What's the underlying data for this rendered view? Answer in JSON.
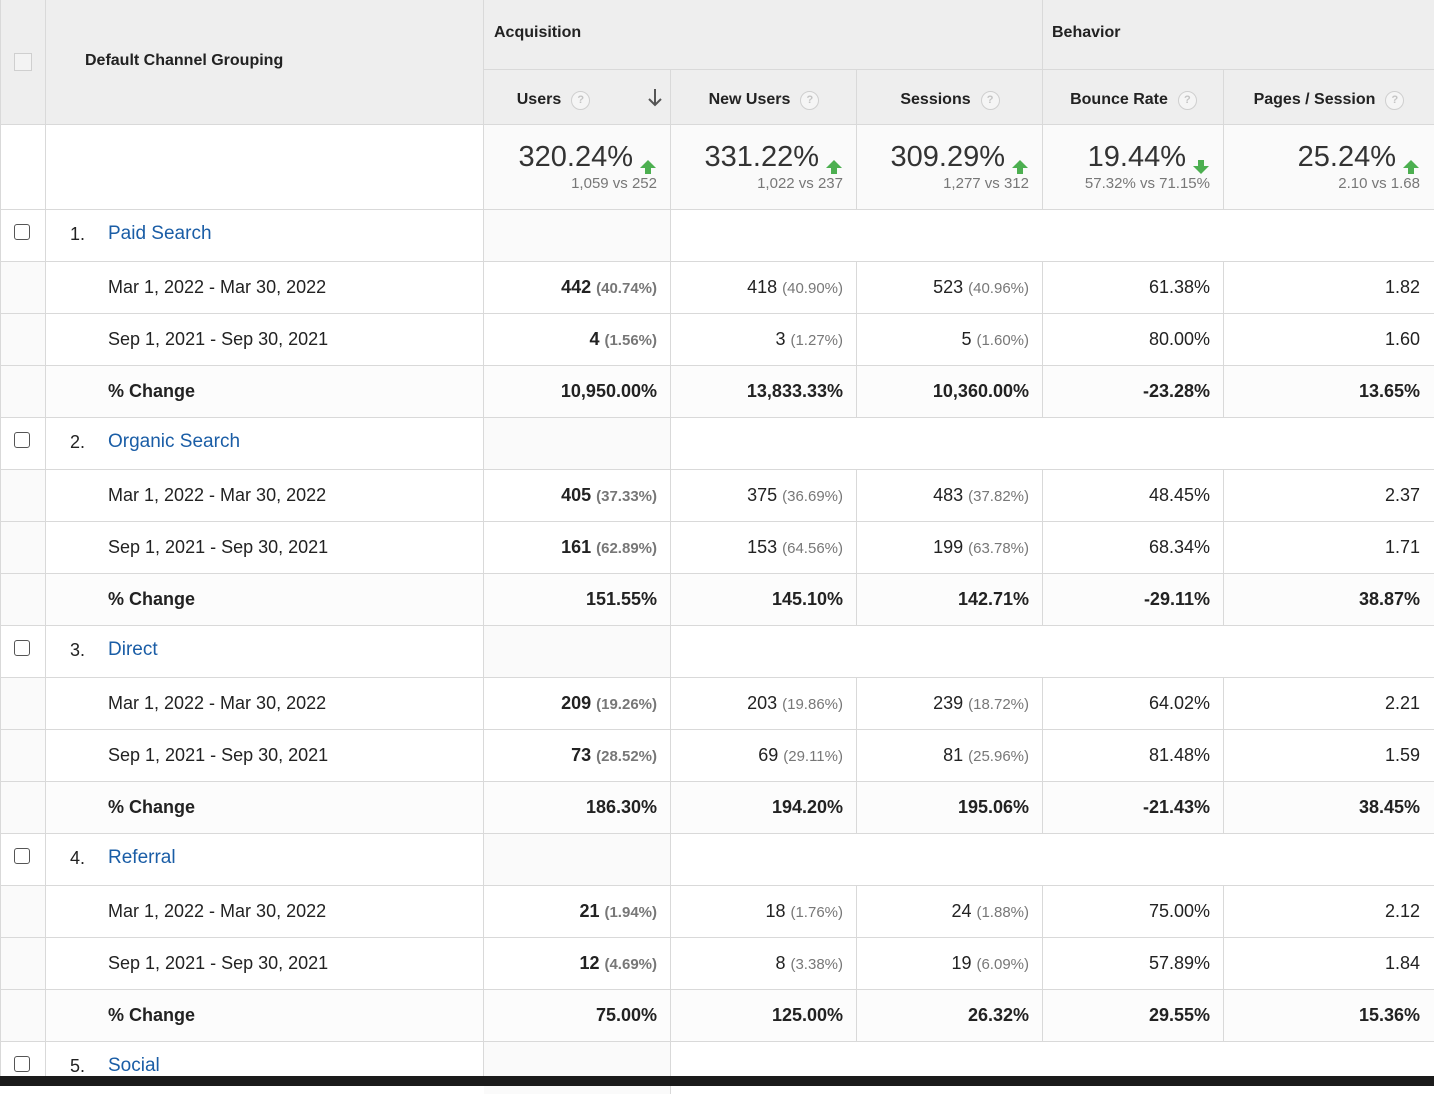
{
  "header": {
    "dimension_label": "Default Channel Grouping",
    "acquisition_label": "Acquisition",
    "behavior_label": "Behavior",
    "help_glyph": "?",
    "columns": [
      {
        "label": "Users",
        "sorted": true
      },
      {
        "label": "New Users"
      },
      {
        "label": "Sessions"
      },
      {
        "label": "Bounce Rate"
      },
      {
        "label": "Pages / Session"
      }
    ]
  },
  "summary": [
    {
      "change": "320.24%",
      "compare": "1,059 vs 252",
      "direction": "up"
    },
    {
      "change": "331.22%",
      "compare": "1,022 vs 237",
      "direction": "up"
    },
    {
      "change": "309.29%",
      "compare": "1,277 vs 312",
      "direction": "up"
    },
    {
      "change": "19.44%",
      "compare": "57.32% vs 71.15%",
      "direction": "down"
    },
    {
      "change": "25.24%",
      "compare": "2.10 vs 1.68",
      "direction": "up"
    }
  ],
  "colors": {
    "link": "#1a5da6",
    "arrow_green": "#4caf50",
    "header_bg": "#eeeeee"
  },
  "groups": [
    {
      "rank": "1.",
      "name": "Paid Search",
      "rows": [
        {
          "label": "Mar 1, 2022 - Mar 30, 2022",
          "bold": false,
          "cells": [
            {
              "v": "442",
              "p": "(40.74%)"
            },
            {
              "v": "418",
              "p": "(40.90%)"
            },
            {
              "v": "523",
              "p": "(40.96%)"
            },
            {
              "v": "61.38%",
              "p": ""
            },
            {
              "v": "1.82",
              "p": ""
            }
          ]
        },
        {
          "label": "Sep 1, 2021 - Sep 30, 2021",
          "bold": false,
          "cells": [
            {
              "v": "4",
              "p": "(1.56%)"
            },
            {
              "v": "3",
              "p": "(1.27%)"
            },
            {
              "v": "5",
              "p": "(1.60%)"
            },
            {
              "v": "80.00%",
              "p": ""
            },
            {
              "v": "1.60",
              "p": ""
            }
          ]
        },
        {
          "label": "% Change",
          "bold": true,
          "cells": [
            {
              "v": "10,950.00%",
              "p": ""
            },
            {
              "v": "13,833.33%",
              "p": ""
            },
            {
              "v": "10,360.00%",
              "p": ""
            },
            {
              "v": "-23.28%",
              "p": ""
            },
            {
              "v": "13.65%",
              "p": ""
            }
          ]
        }
      ]
    },
    {
      "rank": "2.",
      "name": "Organic Search",
      "rows": [
        {
          "label": "Mar 1, 2022 - Mar 30, 2022",
          "bold": false,
          "cells": [
            {
              "v": "405",
              "p": "(37.33%)"
            },
            {
              "v": "375",
              "p": "(36.69%)"
            },
            {
              "v": "483",
              "p": "(37.82%)"
            },
            {
              "v": "48.45%",
              "p": ""
            },
            {
              "v": "2.37",
              "p": ""
            }
          ]
        },
        {
          "label": "Sep 1, 2021 - Sep 30, 2021",
          "bold": false,
          "cells": [
            {
              "v": "161",
              "p": "(62.89%)"
            },
            {
              "v": "153",
              "p": "(64.56%)"
            },
            {
              "v": "199",
              "p": "(63.78%)"
            },
            {
              "v": "68.34%",
              "p": ""
            },
            {
              "v": "1.71",
              "p": ""
            }
          ]
        },
        {
          "label": "% Change",
          "bold": true,
          "cells": [
            {
              "v": "151.55%",
              "p": ""
            },
            {
              "v": "145.10%",
              "p": ""
            },
            {
              "v": "142.71%",
              "p": ""
            },
            {
              "v": "-29.11%",
              "p": ""
            },
            {
              "v": "38.87%",
              "p": ""
            }
          ]
        }
      ]
    },
    {
      "rank": "3.",
      "name": "Direct",
      "rows": [
        {
          "label": "Mar 1, 2022 - Mar 30, 2022",
          "bold": false,
          "cells": [
            {
              "v": "209",
              "p": "(19.26%)"
            },
            {
              "v": "203",
              "p": "(19.86%)"
            },
            {
              "v": "239",
              "p": "(18.72%)"
            },
            {
              "v": "64.02%",
              "p": ""
            },
            {
              "v": "2.21",
              "p": ""
            }
          ]
        },
        {
          "label": "Sep 1, 2021 - Sep 30, 2021",
          "bold": false,
          "cells": [
            {
              "v": "73",
              "p": "(28.52%)"
            },
            {
              "v": "69",
              "p": "(29.11%)"
            },
            {
              "v": "81",
              "p": "(25.96%)"
            },
            {
              "v": "81.48%",
              "p": ""
            },
            {
              "v": "1.59",
              "p": ""
            }
          ]
        },
        {
          "label": "% Change",
          "bold": true,
          "cells": [
            {
              "v": "186.30%",
              "p": ""
            },
            {
              "v": "194.20%",
              "p": ""
            },
            {
              "v": "195.06%",
              "p": ""
            },
            {
              "v": "-21.43%",
              "p": ""
            },
            {
              "v": "38.45%",
              "p": ""
            }
          ]
        }
      ]
    },
    {
      "rank": "4.",
      "name": "Referral",
      "rows": [
        {
          "label": "Mar 1, 2022 - Mar 30, 2022",
          "bold": false,
          "cells": [
            {
              "v": "21",
              "p": "(1.94%)"
            },
            {
              "v": "18",
              "p": "(1.76%)"
            },
            {
              "v": "24",
              "p": "(1.88%)"
            },
            {
              "v": "75.00%",
              "p": ""
            },
            {
              "v": "2.12",
              "p": ""
            }
          ]
        },
        {
          "label": "Sep 1, 2021 - Sep 30, 2021",
          "bold": false,
          "cells": [
            {
              "v": "12",
              "p": "(4.69%)"
            },
            {
              "v": "8",
              "p": "(3.38%)"
            },
            {
              "v": "19",
              "p": "(6.09%)"
            },
            {
              "v": "57.89%",
              "p": ""
            },
            {
              "v": "1.84",
              "p": ""
            }
          ]
        },
        {
          "label": "% Change",
          "bold": true,
          "cells": [
            {
              "v": "75.00%",
              "p": ""
            },
            {
              "v": "125.00%",
              "p": ""
            },
            {
              "v": "26.32%",
              "p": ""
            },
            {
              "v": "29.55%",
              "p": ""
            },
            {
              "v": "15.36%",
              "p": ""
            }
          ]
        }
      ]
    },
    {
      "rank": "5.",
      "name": "Social",
      "rows": []
    }
  ]
}
